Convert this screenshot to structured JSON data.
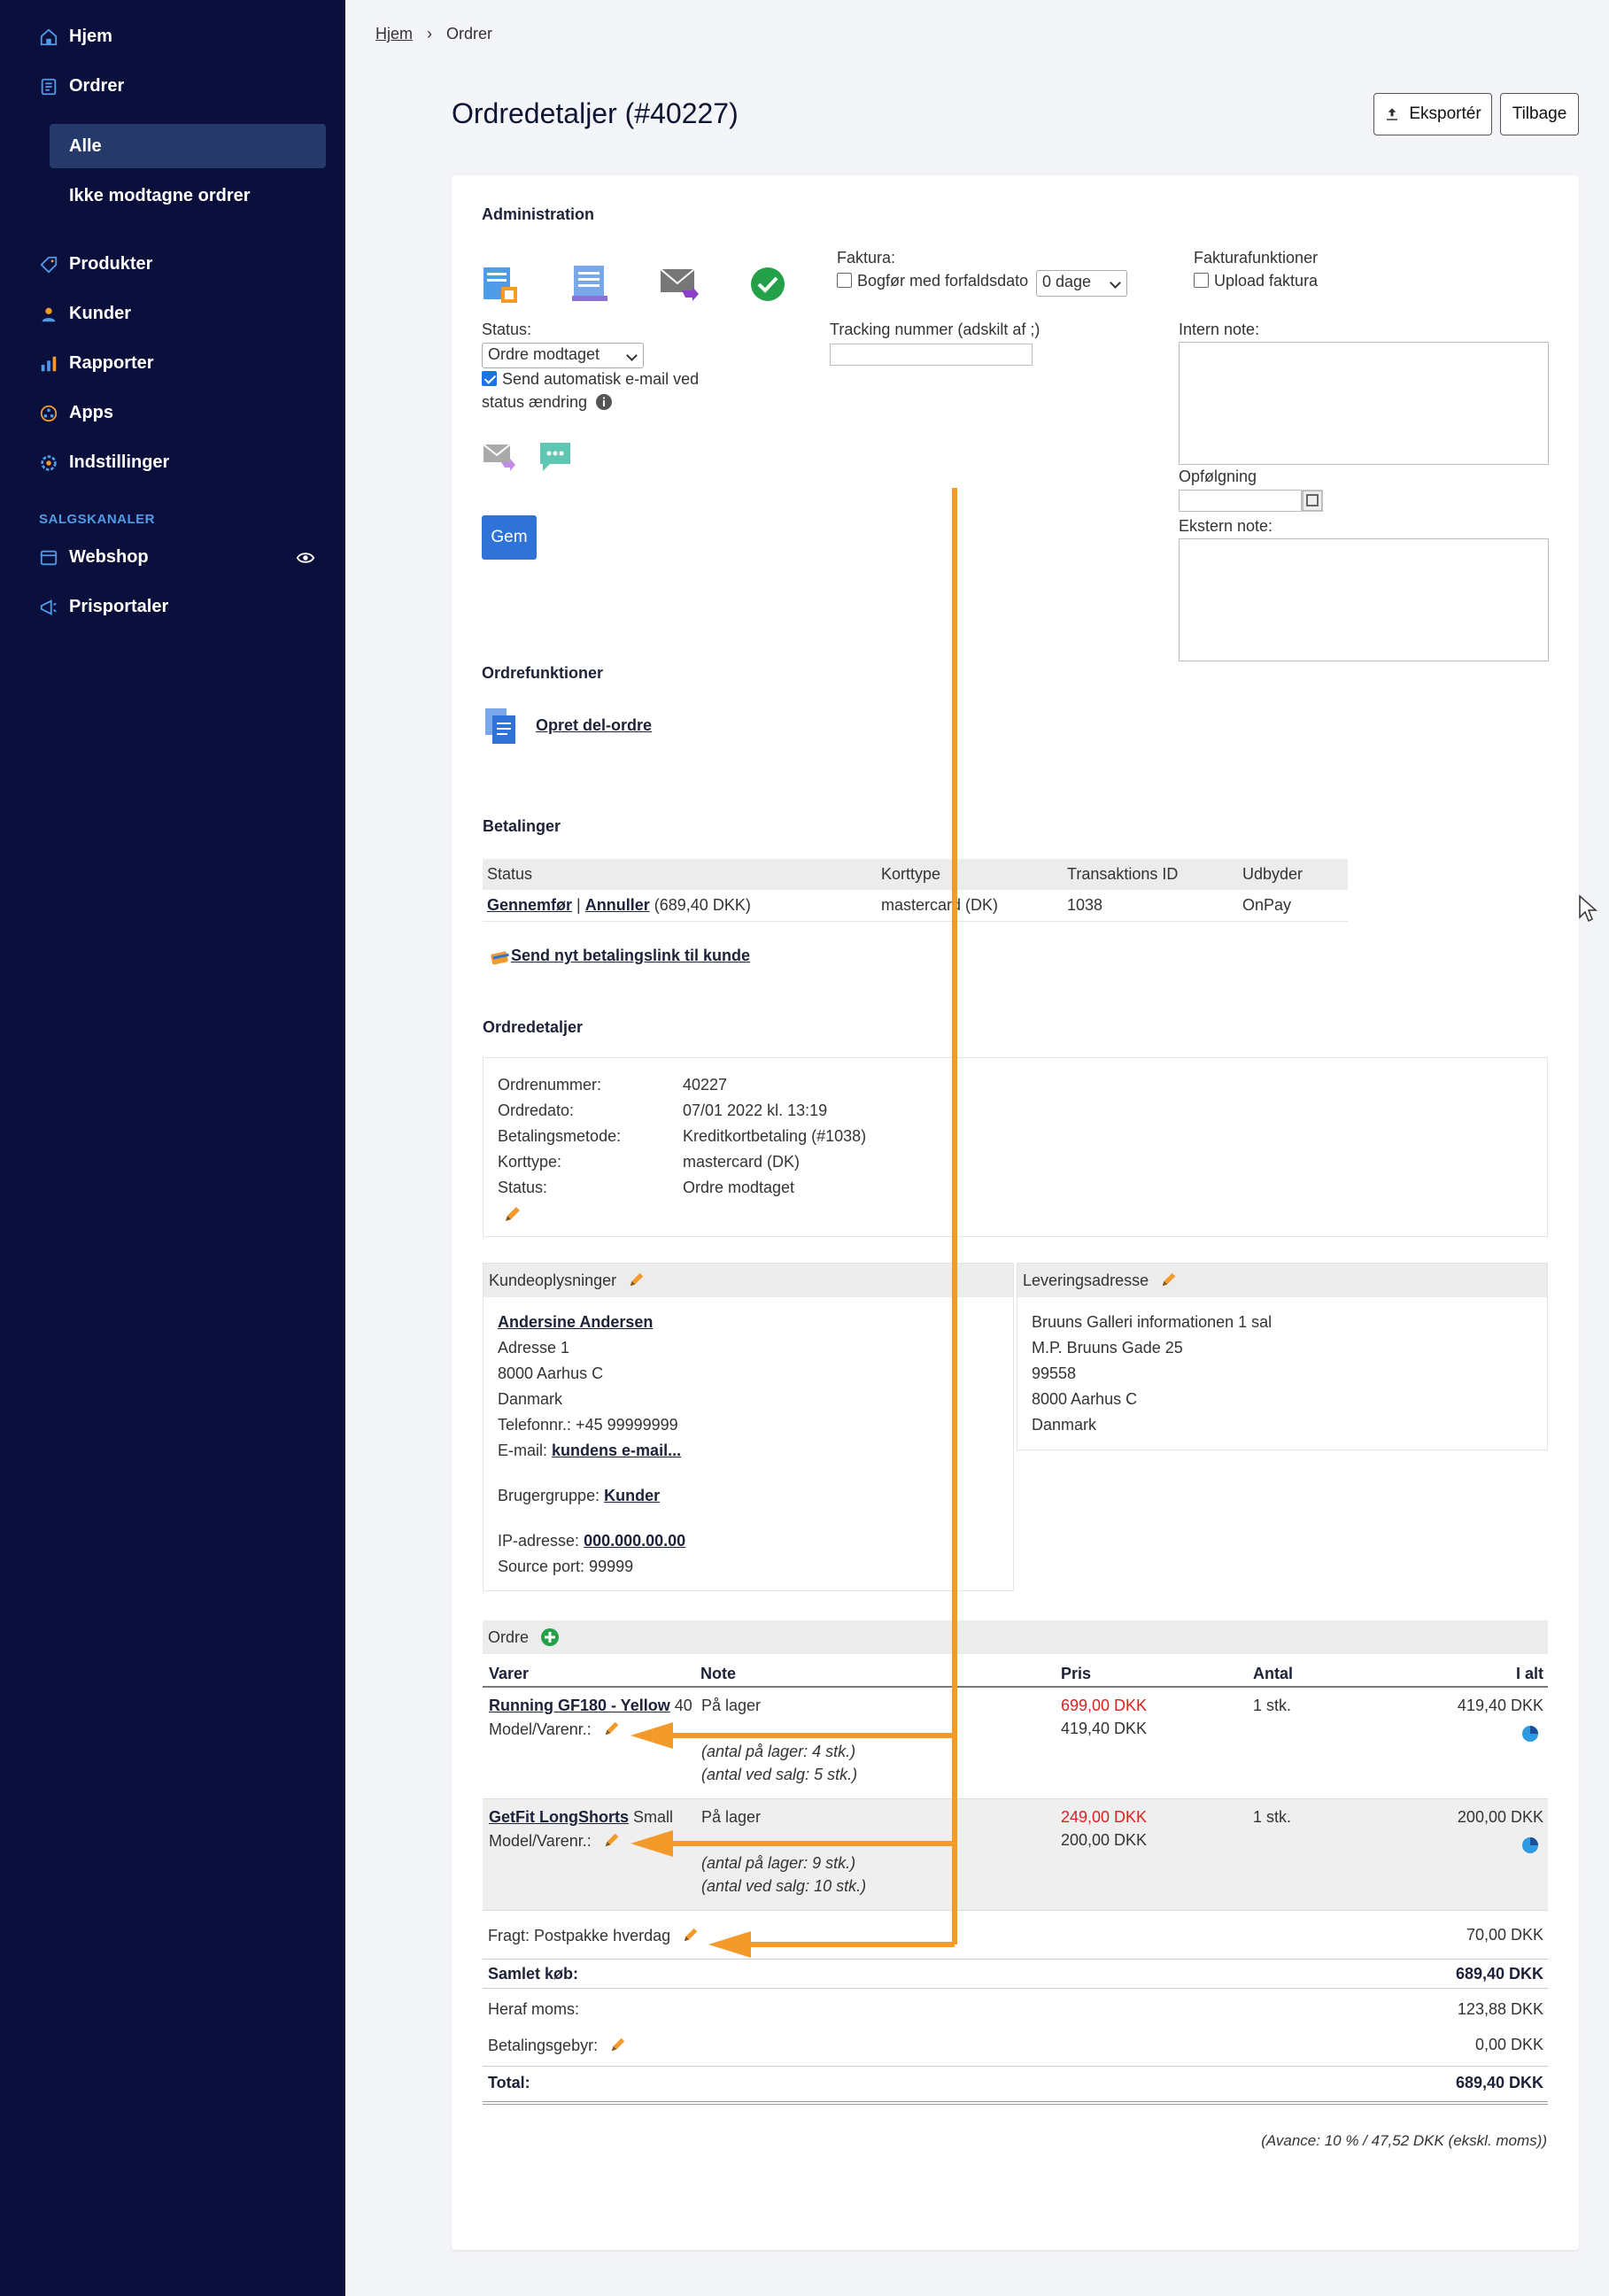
{
  "sidebar": {
    "items": [
      {
        "label": "Hjem",
        "icon": "home-icon"
      },
      {
        "label": "Ordrer",
        "icon": "orders-icon"
      },
      {
        "label": "Produkter",
        "icon": "tag-icon"
      },
      {
        "label": "Kunder",
        "icon": "user-icon"
      },
      {
        "label": "Rapporter",
        "icon": "bar-chart-icon"
      },
      {
        "label": "Apps",
        "icon": "apps-icon"
      },
      {
        "label": "Indstillinger",
        "icon": "gear-icon"
      }
    ],
    "sub_items": [
      {
        "label": "Alle",
        "active": true
      },
      {
        "label": "Ikke modtagne ordrer",
        "active": false
      }
    ],
    "section_title": "SALGSKANALER",
    "channels": [
      {
        "label": "Webshop",
        "icon": "store-icon"
      },
      {
        "label": "Prisportaler",
        "icon": "megaphone-icon"
      }
    ]
  },
  "breadcrumb": {
    "home": "Hjem",
    "separator": "›",
    "current": "Ordrer"
  },
  "header": {
    "title": "Ordredetaljer (#40227)",
    "export_label": "Eksportér",
    "back_label": "Tilbage"
  },
  "admin": {
    "title": "Administration",
    "faktura_label": "Faktura:",
    "bogfor_label": "Bogfør med forfaldsdato",
    "days_value": "0 dage",
    "fakturafunktioner_label": "Fakturafunktioner",
    "upload_label": "Upload faktura",
    "status_label": "Status:",
    "status_value": "Ordre modtaget",
    "send_email_label": "Send automatisk e-mail ved",
    "send_email_label2": "status ændring",
    "tracking_label": "Tracking nummer (adskilt af ;)",
    "intern_note_label": "Intern note:",
    "opfolgning_label": "Opfølgning",
    "ekstern_note_label": "Ekstern note:",
    "save_label": "Gem"
  },
  "order_functions": {
    "title": "Ordrefunktioner",
    "create_sub_order": "Opret del-ordre"
  },
  "payments": {
    "title": "Betalinger",
    "columns": [
      "Status",
      "Korttype",
      "Transaktions ID",
      "Udbyder"
    ],
    "rows": [
      {
        "complete": "Gennemfør",
        "sep": "|",
        "cancel": "Annuller",
        "amount": "(689,40 DKK)",
        "card": "mastercard (DK)",
        "transaction": "1038",
        "provider": "OnPay"
      }
    ],
    "send_link": "Send nyt betalingslink til kunde"
  },
  "order_details": {
    "title": "Ordredetaljer",
    "fields": [
      {
        "label": "Ordrenummer:",
        "value": "40227"
      },
      {
        "label": "Ordredato:",
        "value": "07/01 2022 kl. 13:19"
      },
      {
        "label": "Betalingsmetode:",
        "value": "Kreditkortbetaling (#1038)"
      },
      {
        "label": "Korttype:",
        "value": "mastercard (DK)"
      },
      {
        "label": "Status:",
        "value": "Ordre modtaget"
      }
    ]
  },
  "customer": {
    "title": "Kundeoplysninger",
    "name": "Andersine Andersen",
    "address": "Adresse 1",
    "city": "8000 Aarhus C",
    "country": "Danmark",
    "phone": "Telefonnr.: +45 99999999",
    "email_label": "E-mail:",
    "email_link": "kundens e-mail...",
    "group_label": "Brugergruppe:",
    "group_link": "Kunder",
    "ip_label": "IP-adresse:",
    "ip_value": "000.000.00.00",
    "source_port": "Source port: 99999"
  },
  "delivery": {
    "title": "Leveringsadresse",
    "lines": [
      "Bruuns Galleri informationen 1 sal",
      "M.P. Bruuns Gade 25",
      "99558",
      "8000 Aarhus C",
      "Danmark"
    ]
  },
  "order": {
    "title": "Ordre",
    "columns": [
      "Varer",
      "Note",
      "Pris",
      "Antal",
      "I alt"
    ],
    "items": [
      {
        "name": "Running GF180 - Yellow",
        "variant": "40",
        "model": "Model/Varenr.:",
        "note": "På lager",
        "stock": "(antal på lager: 4 stk.)",
        "stock_sale": "(antal ved salg: 5 stk.)",
        "price_orig": "699,00 DKK",
        "price": "419,40 DKK",
        "qty": "1 stk.",
        "total": "419,40 DKK"
      },
      {
        "name": "GetFit LongShorts",
        "variant": "Small",
        "model": "Model/Varenr.:",
        "note": "På lager",
        "stock": "(antal på lager: 9 stk.)",
        "stock_sale": "(antal ved salg: 10 stk.)",
        "price_orig": "249,00 DKK",
        "price": "200,00 DKK",
        "qty": "1 stk.",
        "total": "200,00 DKK"
      }
    ],
    "shipping_label": "Fragt: Postpakke hverdag",
    "shipping_value": "70,00 DKK",
    "subtotal_label": "Samlet køb:",
    "subtotal_value": "689,40 DKK",
    "vat_label": "Heraf moms:",
    "vat_value": "123,88 DKK",
    "fee_label": "Betalingsgebyr:",
    "fee_value": "0,00 DKK",
    "total_label": "Total:",
    "total_value": "689,40 DKK",
    "margin_note": "(Avance: 10 % / 47,52 DKK (ekskl. moms))"
  },
  "colors": {
    "sidebar": "#0b0f3b",
    "active": "#253a6b",
    "accent": "#2f73d9",
    "annotation": "#f39a2b",
    "price_red": "#e02020"
  }
}
